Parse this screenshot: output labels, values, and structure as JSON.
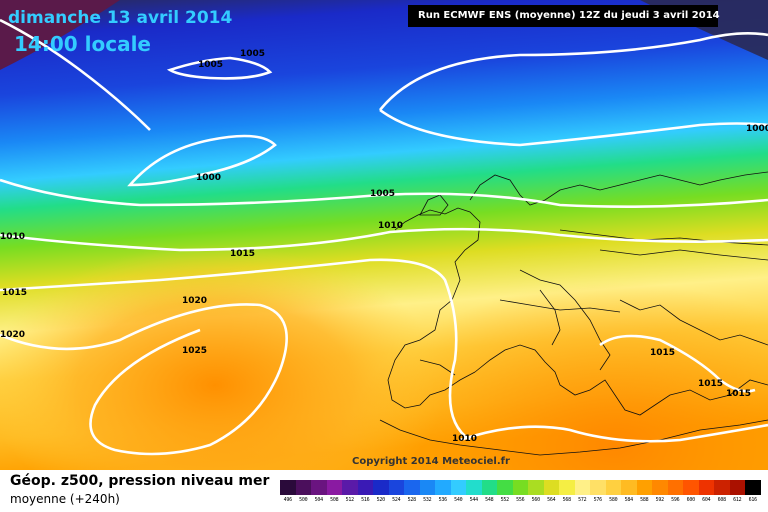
{
  "header": {
    "date": "dimanche 13 avril 2014",
    "time": "14:00 locale",
    "run": "Run ECMWF ENS (moyenne) 12Z du jeudi 3 avril 2014"
  },
  "copyright": "Copyright 2014 Meteociel.fr",
  "footer": {
    "product": "Géop. z500, pression niveau mer",
    "subtitle": "moyenne  (+240h)"
  },
  "isobar_labels": [
    "1005",
    "1005",
    "1000",
    "1000",
    "1005",
    "1010",
    "1010",
    "1015",
    "1015",
    "1020",
    "1020",
    "1025",
    "1015",
    "1015",
    "1015",
    "1010"
  ],
  "legend": {
    "labels": [
      "496",
      "500",
      "504",
      "508",
      "512",
      "516",
      "520",
      "524",
      "528",
      "532",
      "536",
      "540",
      "544",
      "548",
      "552",
      "556",
      "560",
      "564",
      "568",
      "572",
      "576",
      "580",
      "584",
      "588",
      "592",
      "596",
      "600",
      "604",
      "608",
      "612",
      "616"
    ],
    "colors": [
      "#2a0a3a",
      "#4b0f5c",
      "#6a1480",
      "#8a1aa2",
      "#5a1aa8",
      "#3a1ab5",
      "#1a2ac8",
      "#1a45dd",
      "#1a66ee",
      "#1a88f5",
      "#22aaff",
      "#33ccff",
      "#22ddcc",
      "#22dd88",
      "#44dd44",
      "#77dd22",
      "#aadd22",
      "#dddd22",
      "#f5ee44",
      "#fff088",
      "#ffe066",
      "#ffd040",
      "#ffbb22",
      "#ffa000",
      "#ff8800",
      "#ff7000",
      "#ff5500",
      "#ee3300",
      "#cc2200",
      "#aa1100",
      "#000000"
    ]
  }
}
